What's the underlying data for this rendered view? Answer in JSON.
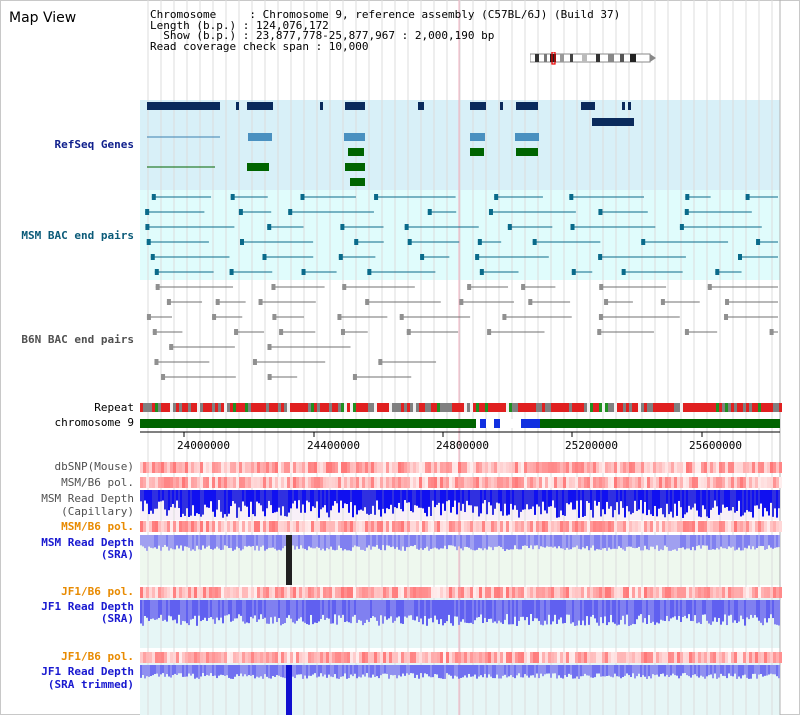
{
  "title": "Map View",
  "info": {
    "line1": "Chromosome     : Chromosome 9, reference assembly (C57BL/6J) (Build 37)",
    "line2": "Length (b.p.) : 124,076,172",
    "line3": "  Show (b.p.) : 23,877,778-25,877,967 : 2,000,190 bp",
    "line4": "Read coverage check span : 10,000"
  },
  "tracks": {
    "refseq": "RefSeq Genes",
    "msm_bac": "MSM BAC end pairs",
    "b6n_bac": "B6N BAC end pairs",
    "repeat": "Repeat",
    "chromosome": "chromosome 9",
    "dbsnp": "dbSNP(Mouse)",
    "msm_b6_pol_1": "MSM/B6 pol.",
    "msm_read_depth_cap_1": "MSM Read Depth",
    "msm_read_depth_cap_2": "(Capillary)",
    "msm_b6_pol_2": "MSM/B6 pol.",
    "msm_read_depth_sra_1": "MSM Read Depth",
    "msm_read_depth_sra_2": "(SRA)",
    "jf1_b6_pol_1": "JF1/B6 pol.",
    "jf1_read_depth_sra_1": "JF1 Read Depth",
    "jf1_read_depth_sra_2": "(SRA)",
    "jf1_b6_pol_2": "JF1/B6 pol.",
    "jf1_read_depth_trim_1": "JF1 Read Depth",
    "jf1_read_depth_trim_2": "(SRA trimmed)"
  },
  "axis": {
    "ticks": [
      "24000000",
      "24400000",
      "24800000",
      "25200000",
      "25600000"
    ]
  },
  "colors": {
    "refseq_bg": "#d8f0f8",
    "msm_bg": "#e0fcfc",
    "gene_dark": "#0a2a5c",
    "gene_mid": "#4a90c0",
    "gene_green": "#006400",
    "chrom_green": "#006400",
    "depth_blue": "#1010e0",
    "depth_light": "#7878f0"
  }
}
